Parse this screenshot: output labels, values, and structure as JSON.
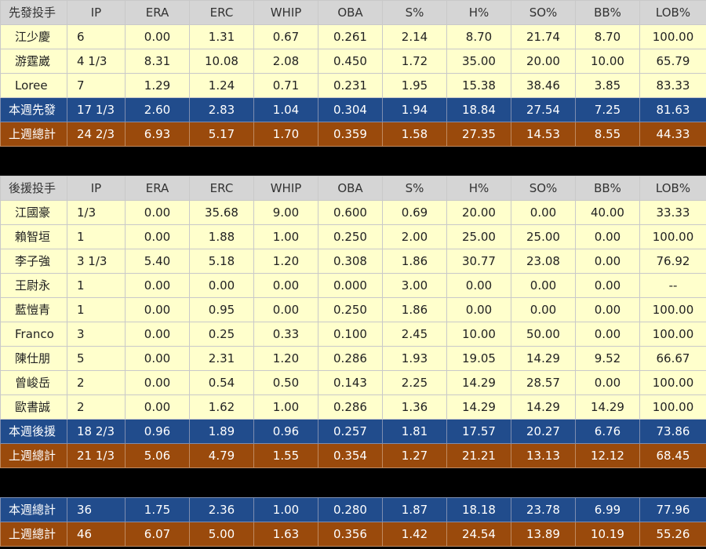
{
  "starters": {
    "header": [
      "先發投手",
      "IP",
      "ERA",
      "ERC",
      "WHIP",
      "OBA",
      "S%",
      "H%",
      "SO%",
      "BB%",
      "LOB%"
    ],
    "rows": [
      [
        "江少慶",
        "6",
        "0.00",
        "1.31",
        "0.67",
        "0.261",
        "2.14",
        "8.70",
        "21.74",
        "8.70",
        "100.00"
      ],
      [
        "游霆崴",
        "4 1/3",
        "8.31",
        "10.08",
        "2.08",
        "0.450",
        "1.72",
        "35.00",
        "20.00",
        "10.00",
        "65.79"
      ],
      [
        "Loree",
        "7",
        "1.29",
        "1.24",
        "0.71",
        "0.231",
        "1.95",
        "15.38",
        "38.46",
        "3.85",
        "83.33"
      ]
    ],
    "this_week": [
      "本週先發",
      "17 1/3",
      "2.60",
      "2.83",
      "1.04",
      "0.304",
      "1.94",
      "18.84",
      "27.54",
      "7.25",
      "81.63"
    ],
    "last_week": [
      "上週總計",
      "24 2/3",
      "6.93",
      "5.17",
      "1.70",
      "0.359",
      "1.58",
      "27.35",
      "14.53",
      "8.55",
      "44.33"
    ]
  },
  "relievers": {
    "header": [
      "後援投手",
      "IP",
      "ERA",
      "ERC",
      "WHIP",
      "OBA",
      "S%",
      "H%",
      "SO%",
      "BB%",
      "LOB%"
    ],
    "rows": [
      [
        "江國豪",
        "1/3",
        "0.00",
        "35.68",
        "9.00",
        "0.600",
        "0.69",
        "20.00",
        "0.00",
        "40.00",
        "33.33"
      ],
      [
        "賴智垣",
        "1",
        "0.00",
        "1.88",
        "1.00",
        "0.250",
        "2.00",
        "25.00",
        "25.00",
        "0.00",
        "100.00"
      ],
      [
        "李子強",
        "3 1/3",
        "5.40",
        "5.18",
        "1.20",
        "0.308",
        "1.86",
        "30.77",
        "23.08",
        "0.00",
        "76.92"
      ],
      [
        "王尉永",
        "1",
        "0.00",
        "0.00",
        "0.00",
        "0.000",
        "3.00",
        "0.00",
        "0.00",
        "0.00",
        "--"
      ],
      [
        "藍愷青",
        "1",
        "0.00",
        "0.95",
        "0.00",
        "0.250",
        "1.86",
        "0.00",
        "0.00",
        "0.00",
        "100.00"
      ],
      [
        "Franco",
        "3",
        "0.00",
        "0.25",
        "0.33",
        "0.100",
        "2.45",
        "10.00",
        "50.00",
        "0.00",
        "100.00"
      ],
      [
        "陳仕朋",
        "5",
        "0.00",
        "2.31",
        "1.20",
        "0.286",
        "1.93",
        "19.05",
        "14.29",
        "9.52",
        "66.67"
      ],
      [
        "曾峻岳",
        "2",
        "0.00",
        "0.54",
        "0.50",
        "0.143",
        "2.25",
        "14.29",
        "28.57",
        "0.00",
        "100.00"
      ],
      [
        "歐書誠",
        "2",
        "0.00",
        "1.62",
        "1.00",
        "0.286",
        "1.36",
        "14.29",
        "14.29",
        "14.29",
        "100.00"
      ]
    ],
    "this_week": [
      "本週後援",
      "18 2/3",
      "0.96",
      "1.89",
      "0.96",
      "0.257",
      "1.81",
      "17.57",
      "20.27",
      "6.76",
      "73.86"
    ],
    "last_week": [
      "上週總計",
      "21 1/3",
      "5.06",
      "4.79",
      "1.55",
      "0.354",
      "1.27",
      "21.21",
      "13.13",
      "12.12",
      "68.45"
    ]
  },
  "totals": {
    "this_week": [
      "本週總計",
      "36",
      "1.75",
      "2.36",
      "1.00",
      "0.280",
      "1.87",
      "18.18",
      "23.78",
      "6.99",
      "77.96"
    ],
    "last_week": [
      "上週總計",
      "46",
      "6.07",
      "5.00",
      "1.63",
      "0.356",
      "1.42",
      "24.54",
      "13.89",
      "10.19",
      "55.26"
    ]
  },
  "colors": {
    "header_bg": "#d5d5d5",
    "row_bg": "#ffffcc",
    "week_bg": "#214c8c",
    "last_bg": "#9a4a0c"
  }
}
